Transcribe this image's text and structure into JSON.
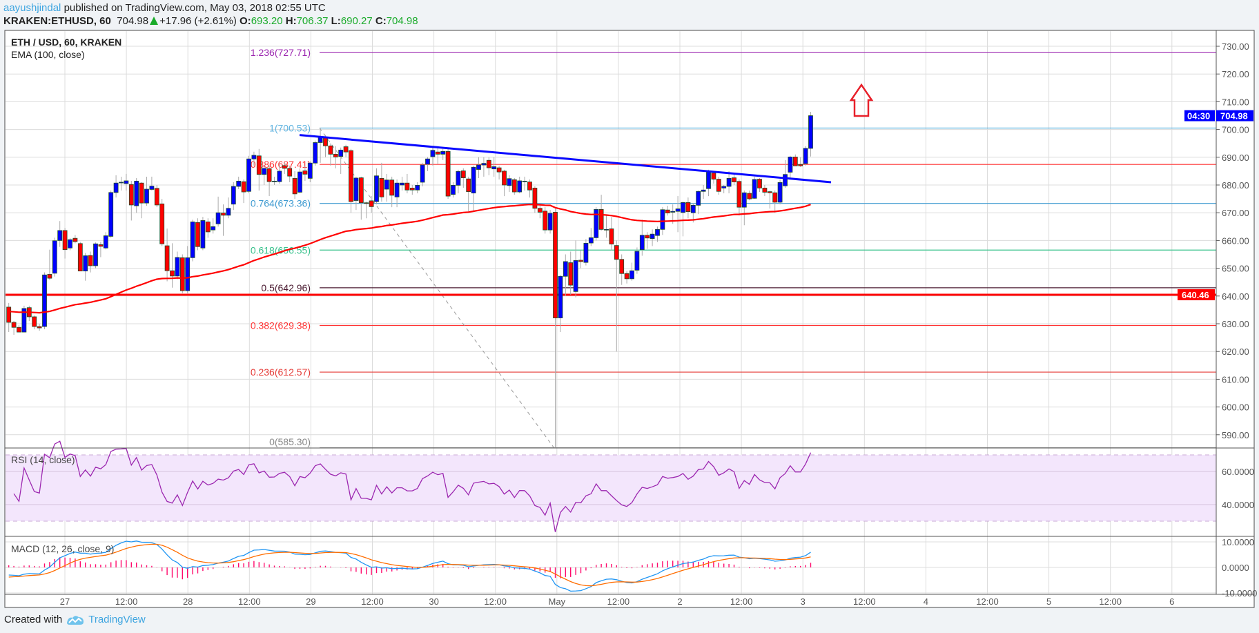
{
  "header": {
    "author": "aayushjindal",
    "published": "published on TradingView.com, May 03, 2018 02:55 UTC",
    "symbol": "KRAKEN:ETHUSD, 60",
    "last": "704.98",
    "change": "+17.96 (+2.61%)",
    "o_label": "O:",
    "o": "693.20",
    "h_label": "H:",
    "h": "706.37",
    "l_label": "L:",
    "l": "690.27",
    "c_label": "C:",
    "c": "704.98"
  },
  "legend": {
    "title": "ETH / USD, 60, KRAKEN",
    "ema": "EMA (100, close)",
    "rsi": "RSI (14, close)",
    "macd": "MACD (12, 26, close, 9)"
  },
  "colors": {
    "up": "#0000ff",
    "down": "#ff0000",
    "ema": "#ff0000",
    "trend": "#0a0aff",
    "support": "#ff0000",
    "rsi": "#9c27b0",
    "macd": "#2196f3",
    "signal": "#ff6d00",
    "hist": "#ff0a6c"
  },
  "chart_data": {
    "type": "candlestick",
    "title": "ETH / USD, 60, KRAKEN",
    "ylim": [
      585,
      735
    ],
    "price_ticks": [
      "730.00",
      "720.00",
      "710.00",
      "700.00",
      "690.00",
      "680.00",
      "670.00",
      "660.00",
      "650.00",
      "640.00",
      "630.00",
      "620.00",
      "610.00",
      "600.00",
      "590.00"
    ],
    "price_tick_values": [
      730,
      720,
      710,
      700,
      690,
      680,
      670,
      660,
      650,
      640,
      630,
      620,
      610,
      600,
      590
    ],
    "time_labels": [
      "27",
      "12:00",
      "28",
      "12:00",
      "29",
      "12:00",
      "30",
      "12:00",
      "May",
      "12:00",
      "2",
      "12:00",
      "3",
      "12:00",
      "4",
      "12:00",
      "5",
      "12:00",
      "6"
    ],
    "first_candle": "Apr 26 13:00",
    "candles_ohlc": [
      [
        636,
        637.5,
        627,
        630.5
      ],
      [
        630.5,
        631,
        626,
        628.7
      ],
      [
        628.7,
        629.5,
        627,
        627
      ],
      [
        627,
        636.5,
        627,
        635.5
      ],
      [
        635.8,
        636.5,
        631,
        632.5
      ],
      [
        632.5,
        633,
        628,
        629
      ],
      [
        629,
        630,
        627.5,
        628.5
      ],
      [
        629,
        648.5,
        628,
        647.6
      ],
      [
        647.8,
        656.7,
        645.8,
        646.4
      ],
      [
        648.2,
        661,
        647,
        659.9
      ],
      [
        660,
        667,
        657.7,
        663.6
      ],
      [
        663.6,
        664.5,
        653.5,
        656.7
      ],
      [
        657.3,
        660.8,
        656.5,
        660.3
      ],
      [
        660.8,
        662,
        659,
        659.6
      ],
      [
        658.9,
        659.5,
        649,
        649
      ],
      [
        649,
        655.5,
        645.5,
        654.5
      ],
      [
        654.6,
        656,
        648.5,
        650.9
      ],
      [
        650.9,
        659.3,
        650,
        658.8
      ],
      [
        658.5,
        659.5,
        654,
        657.9
      ],
      [
        657.3,
        663,
        656.8,
        661.7
      ],
      [
        661.5,
        678,
        661,
        677.3
      ],
      [
        677.3,
        683.5,
        675.5,
        680.7
      ],
      [
        681,
        683,
        678,
        681
      ],
      [
        680.5,
        684,
        678,
        681.5
      ],
      [
        680.2,
        681.5,
        667.2,
        672.8
      ],
      [
        672.5,
        682.5,
        670,
        681.4
      ],
      [
        680.7,
        681,
        668,
        673.5
      ],
      [
        673.5,
        683,
        672.5,
        678.5
      ],
      [
        678.4,
        683,
        678,
        679.6
      ],
      [
        678.8,
        680,
        672,
        672.8
      ],
      [
        673.2,
        675,
        658,
        658.8
      ],
      [
        658.1,
        664.3,
        645.3,
        649.1
      ],
      [
        649.1,
        659,
        643,
        647.2
      ],
      [
        647.2,
        656,
        646,
        653.9
      ],
      [
        653.8,
        655,
        641,
        641.9
      ],
      [
        641.9,
        658,
        641,
        653.8
      ],
      [
        653.8,
        667.5,
        652.5,
        666.7
      ],
      [
        666.5,
        668,
        656.5,
        657.8
      ],
      [
        657.3,
        668.5,
        656.5,
        667.2
      ],
      [
        666.7,
        668,
        661,
        663.1
      ],
      [
        663.8,
        668,
        662.5,
        665
      ],
      [
        666,
        675.8,
        665,
        670
      ],
      [
        669.9,
        673,
        661.7,
        669.1
      ],
      [
        669.1,
        675.5,
        668,
        671.6
      ],
      [
        673.1,
        681,
        671,
        679.5
      ],
      [
        679.5,
        683,
        678.5,
        681.4
      ],
      [
        681.2,
        682,
        673.5,
        677.5
      ],
      [
        677.7,
        690.5,
        677,
        689.4
      ],
      [
        689.4,
        692,
        687,
        690.7
      ],
      [
        690.5,
        693,
        678,
        683.8
      ],
      [
        683.8,
        687,
        680,
        686
      ],
      [
        685.9,
        687,
        676,
        681.2
      ],
      [
        681.2,
        683,
        680,
        681.4
      ],
      [
        681.2,
        688,
        680.5,
        685
      ],
      [
        687,
        688,
        684,
        686
      ],
      [
        686,
        687,
        681,
        683.2
      ],
      [
        682.4,
        685,
        675,
        676.8
      ],
      [
        677.4,
        686,
        677,
        684.7
      ],
      [
        685.1,
        687,
        681.5,
        683.9
      ],
      [
        682.4,
        688.5,
        681,
        687.9
      ],
      [
        687.9,
        696,
        687,
        695.3
      ],
      [
        695.3,
        700.53,
        688,
        697.3
      ],
      [
        696.9,
        698,
        690,
        694.1
      ],
      [
        694.1,
        695,
        687,
        691.1
      ],
      [
        691.1,
        694,
        686,
        690.1
      ],
      [
        690.3,
        693.5,
        684,
        692.6
      ],
      [
        693.8,
        694.5,
        690,
        691.9
      ],
      [
        692.4,
        693,
        670,
        674
      ],
      [
        674.4,
        683,
        671,
        682.5
      ],
      [
        682.6,
        683,
        667.5,
        673.6
      ],
      [
        673.6,
        674,
        668,
        673.5
      ],
      [
        674.3,
        676,
        670,
        672.2
      ],
      [
        674,
        686,
        673,
        683.3
      ],
      [
        682.4,
        688,
        674,
        675.7
      ],
      [
        678.5,
        684,
        674,
        681.8
      ],
      [
        681.8,
        683,
        672,
        676.3
      ],
      [
        675.7,
        682,
        672,
        680.7
      ],
      [
        680,
        683,
        678,
        680.7
      ],
      [
        680.7,
        684,
        677,
        678.2
      ],
      [
        678.9,
        680,
        676.5,
        678.2
      ],
      [
        678.2,
        681,
        677,
        679.9
      ],
      [
        681,
        688,
        679.5,
        687.2
      ],
      [
        687.5,
        690,
        685,
        689.4
      ],
      [
        690.2,
        693.5,
        687,
        692.5
      ],
      [
        691.9,
        693.5,
        687.5,
        691.1
      ],
      [
        691.1,
        693,
        689,
        692.1
      ],
      [
        692.1,
        693,
        675,
        676
      ],
      [
        676.6,
        681,
        675.5,
        679.9
      ],
      [
        679.9,
        685.5,
        677,
        684.9
      ],
      [
        685.1,
        686,
        679,
        682.6
      ],
      [
        682.2,
        683,
        670.5,
        677.6
      ],
      [
        677.1,
        687,
        670.5,
        686.4
      ],
      [
        685.6,
        690,
        682.5,
        687.2
      ],
      [
        687.2,
        690,
        683,
        687.8
      ],
      [
        688.9,
        690,
        683.5,
        686.2
      ],
      [
        685.8,
        690,
        683,
        686.6
      ],
      [
        686.2,
        687,
        682,
        684.7
      ],
      [
        685,
        685.5,
        676,
        680
      ],
      [
        679.8,
        683.5,
        677.5,
        682.3
      ],
      [
        681.9,
        682.5,
        676.5,
        677.5
      ],
      [
        677.5,
        683,
        677,
        681.5
      ],
      [
        681.4,
        683,
        678,
        681.4
      ],
      [
        681.1,
        682,
        675.5,
        678.2
      ],
      [
        678.9,
        679.5,
        670,
        671.6
      ],
      [
        671.6,
        673,
        668,
        670.2
      ],
      [
        670.6,
        672,
        662.5,
        663.8
      ],
      [
        663.8,
        671,
        662.5,
        669.8
      ],
      [
        670.2,
        671.5,
        585.3,
        632.1
      ],
      [
        632.1,
        647.5,
        627,
        647.1
      ],
      [
        647.1,
        655,
        640,
        652.4
      ],
      [
        652,
        656,
        640.5,
        643.9
      ],
      [
        641.6,
        660,
        639.5,
        652.8
      ],
      [
        652.9,
        656.5,
        650,
        652.4
      ],
      [
        652.1,
        660.5,
        651,
        659
      ],
      [
        659.1,
        664.5,
        658,
        661
      ],
      [
        661,
        672,
        660,
        671.2
      ],
      [
        671.2,
        676.5,
        663.5,
        664
      ],
      [
        664,
        669,
        661,
        664
      ],
      [
        664.2,
        668.5,
        656.5,
        658.7
      ],
      [
        658.2,
        660,
        620,
        653.2
      ],
      [
        653.2,
        655,
        644,
        648.1
      ],
      [
        648.1,
        649,
        644.5,
        646.2
      ],
      [
        646.2,
        652,
        645.5,
        649.1
      ],
      [
        649.3,
        657.5,
        648,
        656.1
      ],
      [
        656.7,
        667.5,
        654.5,
        661.9
      ],
      [
        661.9,
        663,
        657,
        660.9
      ],
      [
        660.7,
        664,
        658,
        662.3
      ],
      [
        661.8,
        665,
        659.5,
        664
      ],
      [
        664,
        672,
        662,
        671.1
      ],
      [
        671,
        672.5,
        669,
        669.9
      ],
      [
        670.2,
        673,
        666,
        670.5
      ],
      [
        670.5,
        676,
        663,
        671.4
      ],
      [
        670.1,
        674,
        661.5,
        673.7
      ],
      [
        673.7,
        675.5,
        668,
        670.4
      ],
      [
        670,
        673.5,
        666.5,
        672.7
      ],
      [
        672.7,
        678,
        669.5,
        677.7
      ],
      [
        677.7,
        680,
        675,
        678.2
      ],
      [
        678.7,
        685.5,
        676,
        684.6
      ],
      [
        684.3,
        685,
        680.5,
        682.1
      ],
      [
        682.1,
        683,
        676.5,
        677.7
      ],
      [
        678.9,
        680,
        677,
        679.5
      ],
      [
        679.5,
        685,
        677,
        682.4
      ],
      [
        682.6,
        684,
        680,
        681.1
      ],
      [
        681.3,
        682,
        669,
        672
      ],
      [
        672,
        678,
        665.5,
        677.2
      ],
      [
        677,
        678,
        674.5,
        675
      ],
      [
        675.2,
        683,
        675,
        682
      ],
      [
        682.1,
        682.5,
        677.5,
        678.9
      ],
      [
        678.9,
        680,
        676,
        677.4
      ],
      [
        677.6,
        678,
        671.5,
        677.2
      ],
      [
        677.2,
        678,
        670,
        673.8
      ],
      [
        673.8,
        682,
        673,
        680.9
      ],
      [
        679.7,
        689,
        679,
        683.8
      ],
      [
        684.6,
        690.5,
        682.5,
        690.1
      ],
      [
        690.1,
        691,
        687.5,
        686.9
      ],
      [
        687.4,
        690,
        686.5,
        686.9
      ],
      [
        687.7,
        694,
        687,
        693.2
      ],
      [
        693.2,
        706.37,
        690.27,
        704.98
      ]
    ],
    "fib_levels": [
      {
        "label": "1.236(727.71)",
        "value": 727.71,
        "color": "#9c27b0"
      },
      {
        "label": "1(700.53)",
        "value": 700.53,
        "color": "#5fb3e0"
      },
      {
        "label": "0.886(687.41)",
        "value": 687.41,
        "color": "#ff3333"
      },
      {
        "label": "0.764(673.36)",
        "value": 673.36,
        "color": "#3d9ad1"
      },
      {
        "label": "0.618(656.55)",
        "value": 656.55,
        "color": "#35c08a"
      },
      {
        "label": "0.5(642.96)",
        "value": 642.96,
        "color": "#4a1a30"
      },
      {
        "label": "0.382(629.38)",
        "value": 629.38,
        "color": "#ff3333"
      },
      {
        "label": "0.236(612.57)",
        "value": 612.57,
        "color": "#e53935"
      },
      {
        "label": "0(585.30)",
        "value": 585.3,
        "color": "#888888"
      }
    ],
    "support_level": 640.46,
    "support_label": "640.46",
    "last_price_label": "704.98",
    "countdown_label": "04:30",
    "trendline": {
      "from": [
        698.0,
        "Apr 28 20:00"
      ],
      "to": [
        681.0,
        "May 3 06:00"
      ]
    },
    "rsi_ticks": [
      "60.0000",
      "40.0000"
    ],
    "rsi_tick_values": [
      60,
      40
    ],
    "rsi_band": [
      30,
      70
    ],
    "macd_ticks": [
      "10.0000",
      "0.0000",
      "-10.0000"
    ],
    "macd_tick_values": [
      10,
      0,
      -10
    ]
  },
  "footer": {
    "created": "Created with",
    "brand": "TradingView"
  }
}
